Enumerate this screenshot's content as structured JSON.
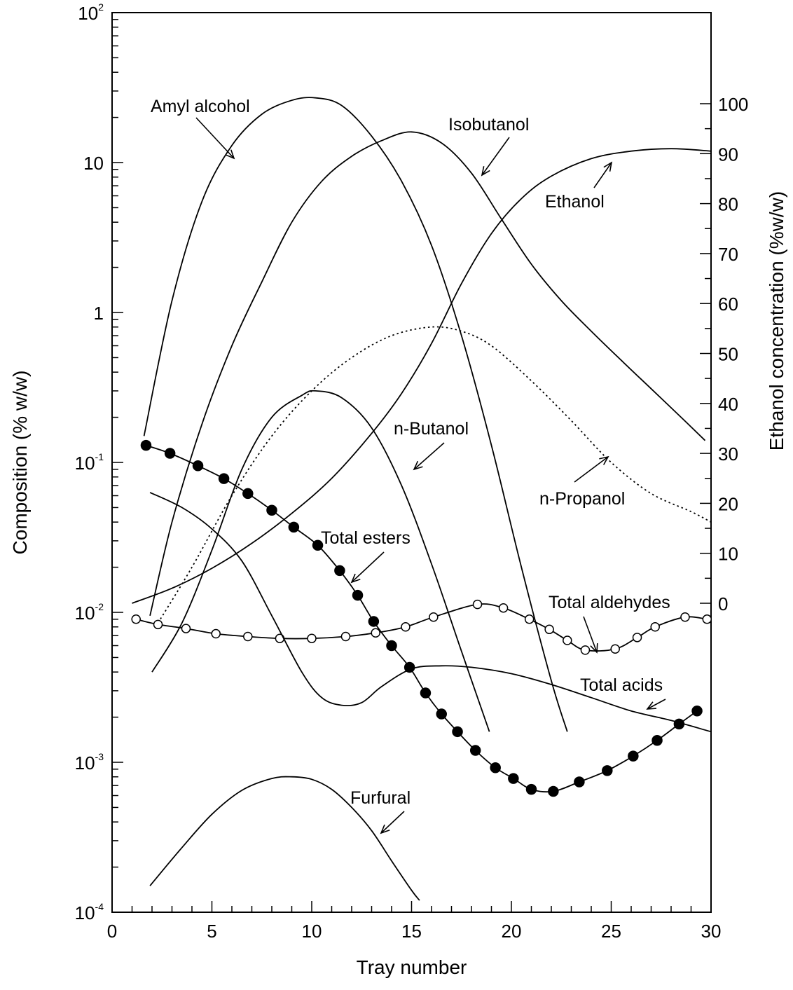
{
  "chart_data": {
    "type": "line",
    "xlabel": "Tray number",
    "ylabel_left": "Composition (% w/w)",
    "ylabel_right": "Ethanol concentration (%w/w)",
    "xlim": [
      0,
      30
    ],
    "x_ticks": [
      "0",
      "5",
      "10",
      "15",
      "20",
      "25",
      "30"
    ],
    "y_left_scale": "log",
    "y_left_lim": [
      0.0001,
      100
    ],
    "y_left_ticks": [
      {
        "value": 100,
        "base": "10",
        "exp": "2"
      },
      {
        "value": 10,
        "base": "10",
        "exp": ""
      },
      {
        "value": 1,
        "base": "1",
        "exp": ""
      },
      {
        "value": 0.1,
        "base": "10",
        "exp": "-1"
      },
      {
        "value": 0.01,
        "base": "10",
        "exp": "-2"
      },
      {
        "value": 0.001,
        "base": "10",
        "exp": "-3"
      },
      {
        "value": 0.0001,
        "base": "10",
        "exp": "-4"
      }
    ],
    "y_right_lim": [
      0,
      100
    ],
    "y_right_ticks": [
      "0",
      "10",
      "20",
      "30",
      "40",
      "50",
      "60",
      "70",
      "80",
      "90",
      "100"
    ],
    "grid": false,
    "series": [
      {
        "name": "Amyl alcohol",
        "axis": "left",
        "style": "solid",
        "x": [
          1.6,
          3,
          4.5,
          6,
          7.5,
          9,
          10.2,
          11.5,
          13,
          14.5,
          16,
          17.5,
          19,
          20.5,
          22,
          22.8
        ],
        "y": [
          0.15,
          1.2,
          5.5,
          13,
          21,
          26,
          27,
          24,
          15,
          7.5,
          2.8,
          0.7,
          0.13,
          0.02,
          0.0035,
          0.0016
        ]
      },
      {
        "name": "Isobutanol",
        "axis": "left",
        "style": "solid",
        "x": [
          1.9,
          3,
          4.5,
          6,
          7.5,
          9,
          10.5,
          12,
          13.5,
          15,
          16.5,
          18,
          19.5,
          21,
          22.5,
          24,
          25.5,
          27,
          28.5,
          29.7
        ],
        "y": [
          0.0095,
          0.04,
          0.18,
          0.6,
          1.6,
          4,
          7.5,
          11,
          14,
          16,
          13.5,
          8.5,
          4.2,
          2.1,
          1.2,
          0.75,
          0.48,
          0.31,
          0.2,
          0.14
        ]
      },
      {
        "name": "Ethanol",
        "axis": "right",
        "style": "solid",
        "x": [
          1,
          3,
          5,
          7,
          9,
          11,
          13,
          14.5,
          16,
          17.5,
          19,
          20.5,
          22,
          24,
          26,
          28,
          30
        ],
        "y": [
          0,
          3,
          7,
          12,
          18,
          25,
          34,
          42,
          52,
          64,
          74,
          81,
          85.5,
          89,
          90.5,
          91,
          90.5
        ]
      },
      {
        "name": "n-Propanol",
        "axis": "left",
        "style": "dotted",
        "x": [
          2.3,
          4,
          6,
          8,
          10,
          12,
          14,
          16,
          17.5,
          19,
          21,
          23,
          25,
          27,
          29,
          30
        ],
        "y": [
          0.0085,
          0.02,
          0.06,
          0.15,
          0.3,
          0.5,
          0.7,
          0.8,
          0.75,
          0.6,
          0.35,
          0.19,
          0.1,
          0.062,
          0.047,
          0.04
        ]
      },
      {
        "name": "n-Butanol",
        "axis": "left",
        "style": "solid",
        "x": [
          2,
          3.5,
          5,
          6.5,
          8,
          9.5,
          10.2,
          11.5,
          13,
          14.5,
          16,
          17.5,
          18.9
        ],
        "y": [
          0.004,
          0.0085,
          0.026,
          0.09,
          0.2,
          0.28,
          0.3,
          0.27,
          0.17,
          0.07,
          0.021,
          0.0055,
          0.0016
        ]
      },
      {
        "name": "Total esters",
        "axis": "left",
        "style": "solid-filled-markers",
        "x": [
          1.7,
          2.9,
          4.3,
          5.6,
          6.8,
          8.0,
          9.1,
          10.3,
          11.4,
          12.3,
          13.1,
          14.0,
          14.9,
          15.7,
          16.5,
          17.3,
          18.2,
          19.2,
          20.1,
          21.0,
          22.1,
          23.4,
          24.8,
          26.1,
          27.3,
          28.4,
          29.3
        ],
        "y": [
          0.13,
          0.115,
          0.095,
          0.078,
          0.062,
          0.048,
          0.037,
          0.028,
          0.019,
          0.013,
          0.0087,
          0.006,
          0.0043,
          0.0029,
          0.0021,
          0.0016,
          0.0012,
          0.00092,
          0.00078,
          0.00066,
          0.00064,
          0.00074,
          0.00088,
          0.0011,
          0.0014,
          0.0018,
          0.0022
        ]
      },
      {
        "name": "Total aldehydes",
        "axis": "left",
        "style": "solid-open-markers",
        "x": [
          1.2,
          2.3,
          3.7,
          5.2,
          6.8,
          8.4,
          10.0,
          11.7,
          13.2,
          14.7,
          16.1,
          18.3,
          19.6,
          20.9,
          21.9,
          22.8,
          23.7,
          25.2,
          26.3,
          27.2,
          28.7,
          29.8
        ],
        "y": [
          0.009,
          0.0083,
          0.0078,
          0.0072,
          0.0069,
          0.0067,
          0.0067,
          0.0069,
          0.0073,
          0.008,
          0.0093,
          0.0113,
          0.0107,
          0.009,
          0.0077,
          0.0065,
          0.0056,
          0.0057,
          0.0068,
          0.008,
          0.0093,
          0.009
        ]
      },
      {
        "name": "Total acids",
        "axis": "left",
        "style": "solid",
        "x": [
          1.9,
          3.5,
          5,
          6.5,
          8,
          9.5,
          10.5,
          11.5,
          12.5,
          13.5,
          15,
          16.5,
          18,
          20,
          22,
          24,
          26,
          28,
          30
        ],
        "y": [
          0.063,
          0.05,
          0.036,
          0.022,
          0.0095,
          0.004,
          0.0027,
          0.0024,
          0.0025,
          0.0032,
          0.0042,
          0.0044,
          0.0043,
          0.0039,
          0.0033,
          0.0027,
          0.0022,
          0.0019,
          0.0016
        ]
      },
      {
        "name": "Furfural",
        "axis": "left",
        "style": "solid",
        "x": [
          1.9,
          3.5,
          5,
          6.5,
          8,
          9,
          10,
          11,
          12,
          13,
          14,
          15,
          15.4
        ],
        "y": [
          0.00015,
          0.00027,
          0.00045,
          0.00065,
          0.00078,
          0.0008,
          0.00077,
          0.00066,
          0.0005,
          0.00035,
          0.00022,
          0.00014,
          0.00012
        ]
      }
    ],
    "annotations": [
      {
        "text": "Amyl alcohol",
        "series": "Amyl alcohol"
      },
      {
        "text": "Isobutanol",
        "series": "Isobutanol"
      },
      {
        "text": "Ethanol",
        "series": "Ethanol"
      },
      {
        "text": "n-Butanol",
        "series": "n-Butanol"
      },
      {
        "text": "n-Propanol",
        "series": "n-Propanol"
      },
      {
        "text": "Total esters",
        "series": "Total esters"
      },
      {
        "text": "Total aldehydes",
        "series": "Total aldehydes"
      },
      {
        "text": "Total acids",
        "series": "Total acids"
      },
      {
        "text": "Furfural",
        "series": "Furfural"
      }
    ]
  }
}
